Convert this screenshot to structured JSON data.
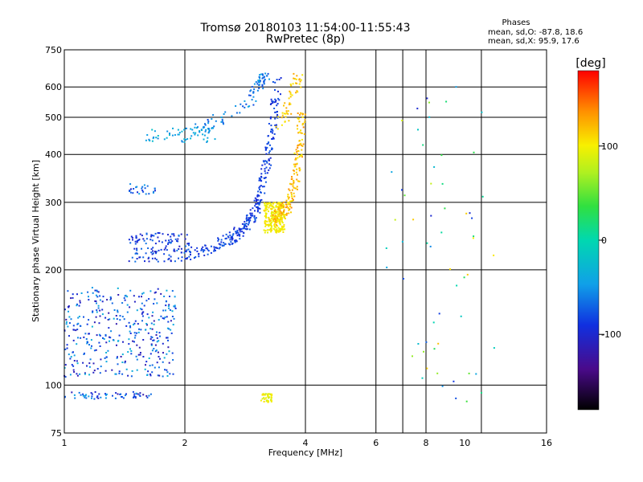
{
  "chart_data": {
    "type": "scatter",
    "title": "Tromsø 20180103 11:54:00-11:55:43",
    "subtitle": "RwPretec (8p)",
    "xlabel": "Frequency [MHz]",
    "ylabel": "Stationary phase Virtual Height [km]",
    "x_scale": "log",
    "y_scale": "log",
    "xlim": [
      1,
      16
    ],
    "ylim": [
      75,
      750
    ],
    "x_ticks": [
      "1",
      "2",
      "4",
      "6",
      "8",
      "10",
      "16"
    ],
    "x_tick_values": [
      1,
      2,
      4,
      6,
      8,
      10,
      16
    ],
    "x_grid": [
      2,
      4,
      6,
      7,
      8,
      11
    ],
    "y_ticks": [
      "75",
      "100",
      "200",
      "300",
      "400",
      "500",
      "600",
      "750"
    ],
    "y_tick_values": [
      75,
      100,
      200,
      300,
      400,
      500,
      600,
      750
    ],
    "grid": true,
    "phases_box": {
      "title": "Phases",
      "line1": "mean, sd,O: -87.8, 18.6",
      "line2": "mean, sd,X:  95.9, 17.6"
    },
    "colorbar": {
      "label": "[deg]",
      "ticks": [
        "100",
        "0",
        "-100"
      ],
      "tick_values": [
        100,
        0,
        -100
      ],
      "range": [
        -180,
        180
      ]
    },
    "colors": {
      "o_trace": "#1f3fd8",
      "o_trace_dark": "#2a1aa8",
      "x_trace": "#f2d400",
      "x_trace_orange": "#f0a000",
      "cyan": "#1fb5e0"
    },
    "groups": [
      {
        "name": "",
        "x": [
          1.0,
          1.65
        ],
        "y": [
          92,
          96
        ],
        "n": 60,
        "phase": [
          -120,
          -40
        ]
      },
      {
        "name": "",
        "x": [
          1.0,
          1.9
        ],
        "y": [
          105,
          180
        ],
        "n": 380,
        "phase": [
          -120,
          -30
        ]
      },
      {
        "name": "",
        "x": [
          1.45,
          2.05
        ],
        "y": [
          210,
          250
        ],
        "n": 130,
        "phase": [
          -110,
          -60
        ]
      },
      {
        "name": "",
        "x": [
          1.45,
          1.7
        ],
        "y": [
          315,
          335
        ],
        "n": 25,
        "phase": [
          -100,
          -40
        ]
      },
      {
        "name": "",
        "x": [
          1.6,
          2.4
        ],
        "y": [
          430,
          470
        ],
        "n": 60,
        "phase": [
          -60,
          -20
        ]
      },
      {
        "name": "",
        "x": [
          3.15,
          3.55
        ],
        "y": [
          250,
          300
        ],
        "n": 240,
        "phase": [
          90,
          110
        ]
      },
      {
        "name": "",
        "x": [
          3.1,
          3.3
        ],
        "y": [
          90,
          95
        ],
        "n": 40,
        "phase": [
          80,
          110
        ]
      },
      {
        "name": "",
        "x": [
          6.3,
          12
        ],
        "y": [
          90,
          610
        ],
        "n": 60,
        "phase": [
          -100,
          120
        ]
      }
    ],
    "traces": [
      {
        "name": "",
        "x": [
          2.0,
          2.3,
          2.6,
          2.85,
          3.0,
          3.1,
          3.2,
          3.3,
          3.4
        ],
        "y": [
          218,
          226,
          240,
          260,
          285,
          320,
          380,
          460,
          620
        ],
        "n": 300,
        "phase": [
          -100,
          -70
        ]
      },
      {
        "name": "",
        "x": [
          2.05,
          2.3,
          2.6,
          2.85,
          3.0,
          3.1,
          3.2
        ],
        "y": [
          460,
          480,
          510,
          540,
          580,
          620,
          640
        ],
        "n": 90,
        "phase": [
          -80,
          -40
        ]
      },
      {
        "name": "",
        "x": [
          3.3,
          3.5,
          3.65,
          3.75,
          3.82,
          3.88,
          3.92
        ],
        "y": [
          265,
          280,
          300,
          330,
          380,
          450,
          520
        ],
        "n": 180,
        "phase": [
          100,
          140
        ]
      },
      {
        "name": "",
        "x": [
          3.45,
          3.6,
          3.72,
          3.8,
          3.85
        ],
        "y": [
          470,
          520,
          570,
          610,
          650
        ],
        "n": 50,
        "phase": [
          100,
          130
        ]
      }
    ]
  }
}
